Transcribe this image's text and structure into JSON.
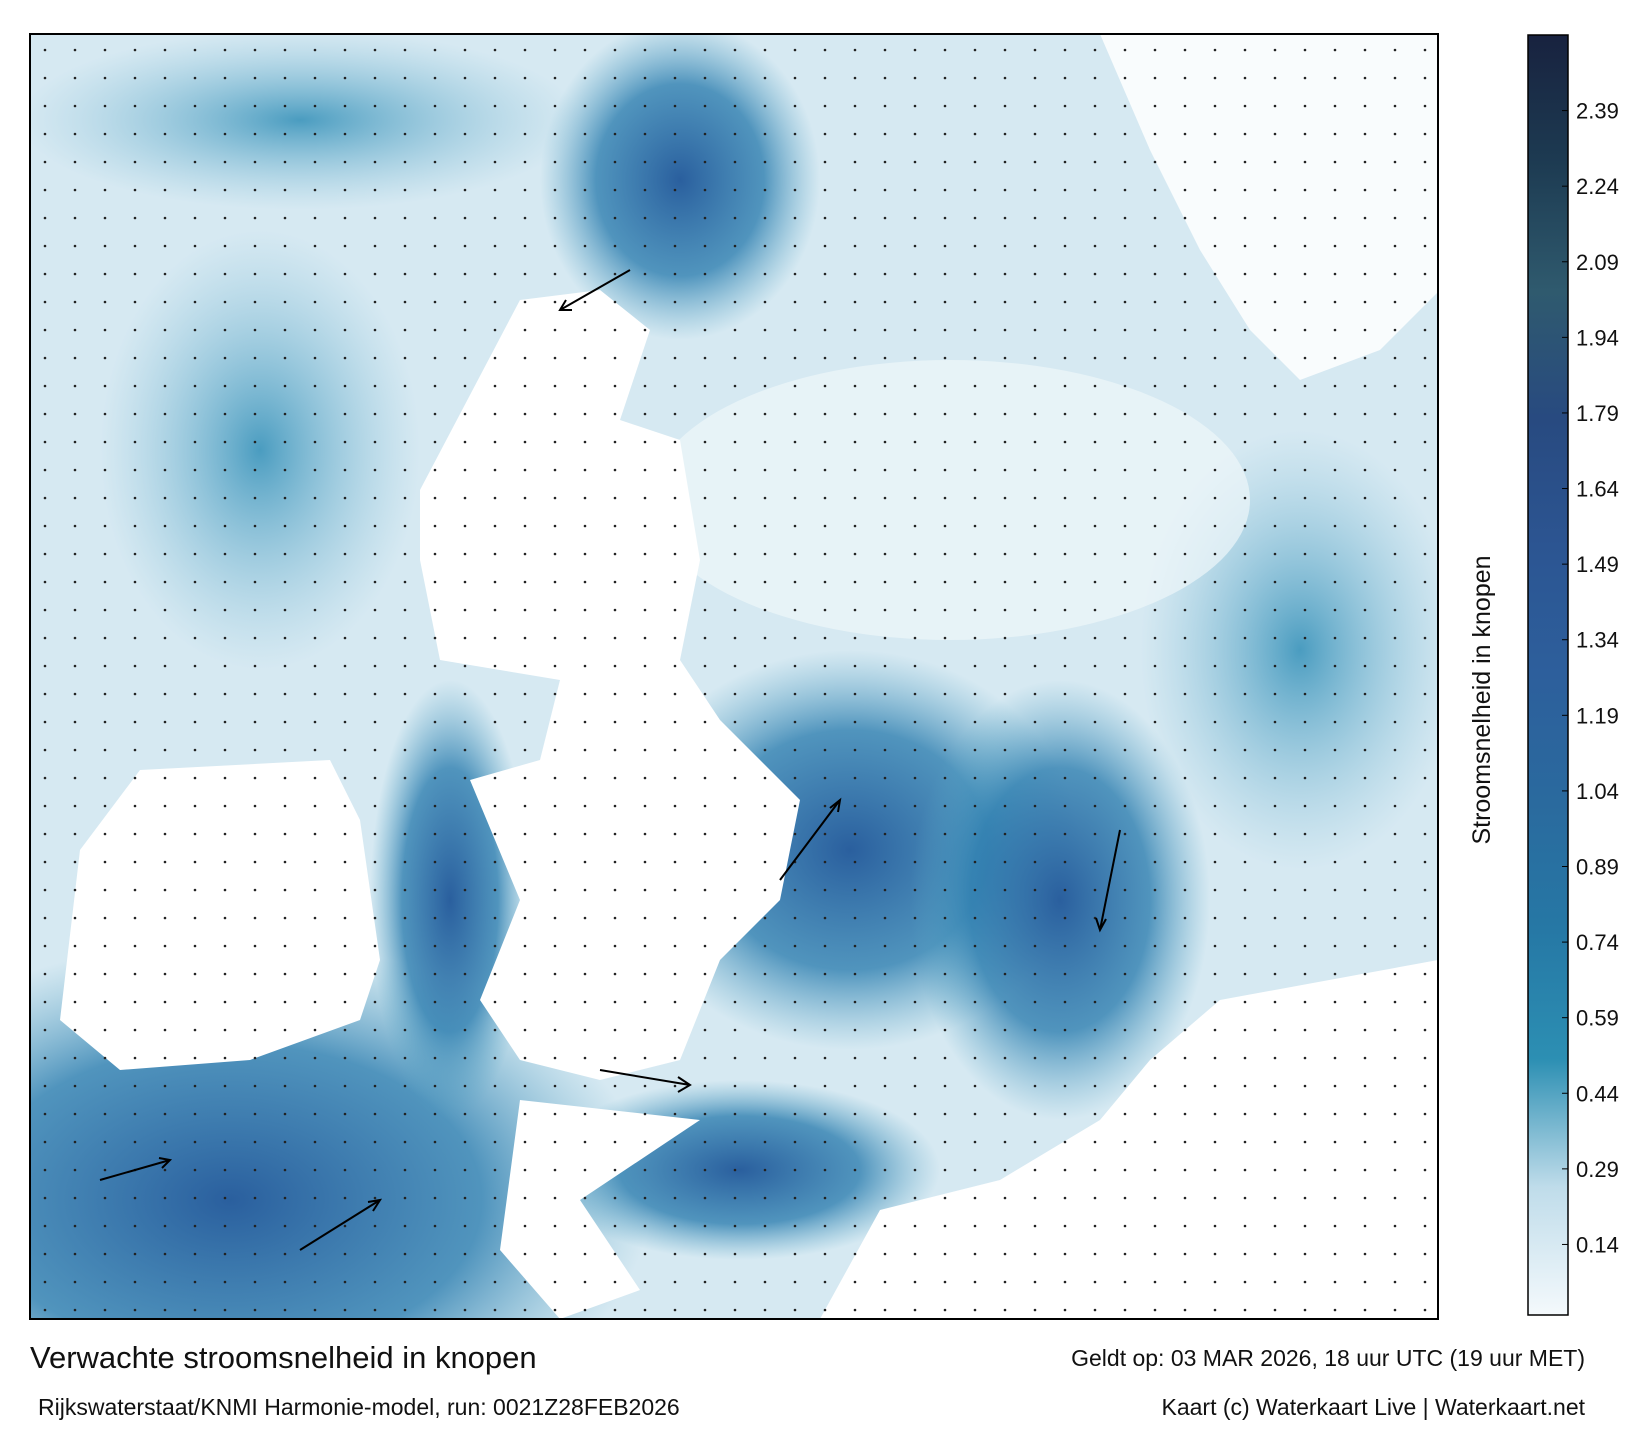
{
  "chart_data": {
    "type": "colormap",
    "title": "Verwachte stroomsnelheid in knopen",
    "subtitle": "Rijkswaterstaat/KNMI Harmonie-model, run: 0021Z28FEB2026",
    "valid_time": "Geldt op: 03 MAR 2026, 18 uur UTC (19 uur MET)",
    "credit": "Kaart (c) Waterkaart Live | Waterkaart.net",
    "colorbar": {
      "label": "Stroomsnelheid in knopen",
      "lim": [
        0,
        2.54
      ],
      "ticks": [
        0.14,
        0.29,
        0.44,
        0.59,
        0.74,
        0.89,
        1.04,
        1.19,
        1.34,
        1.49,
        1.64,
        1.79,
        1.94,
        2.09,
        2.24,
        2.39
      ],
      "colors": [
        "#f4f9fc",
        "#bfdcea",
        "#2c8fb3",
        "#2678a5",
        "#2a6a9e",
        "#2d5f9c",
        "#2c5592",
        "#284a80",
        "#2f5a6e",
        "#1d3b52",
        "#18223f"
      ]
    }
  }
}
